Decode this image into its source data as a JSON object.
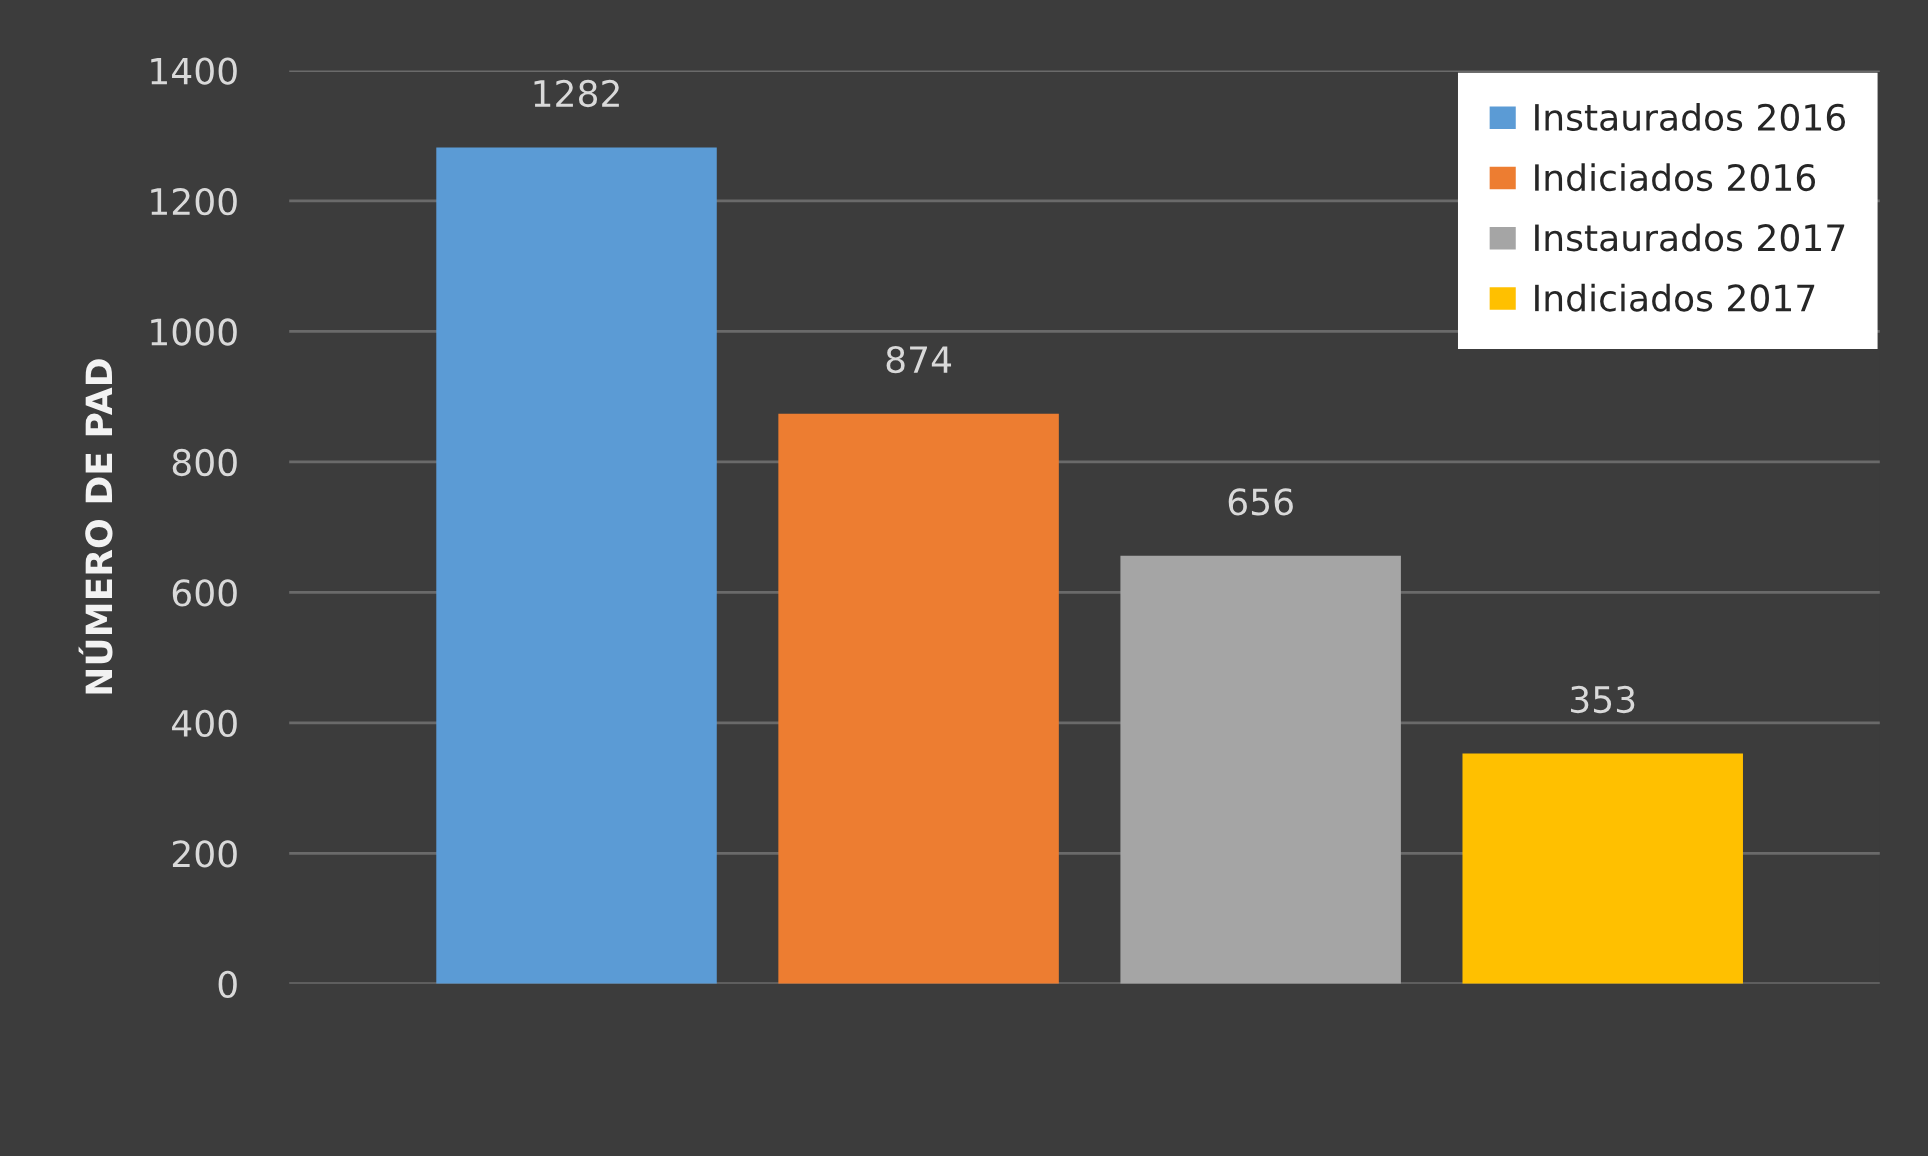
{
  "chart_data": {
    "type": "bar",
    "ylabel": "NÚMERO DE PAD",
    "categories": [
      null,
      null,
      null,
      null
    ],
    "series": [
      {
        "name": "Instaurados 2016",
        "color": "#5b9bd5",
        "values": [
          1282,
          null,
          null,
          null
        ]
      },
      {
        "name": "Indiciados 2016",
        "color": "#ed7d31",
        "values": [
          null,
          874,
          null,
          null
        ]
      },
      {
        "name": "Instaurados 2017",
        "color": "#a5a5a5",
        "values": [
          null,
          null,
          656,
          null
        ]
      },
      {
        "name": "Indiciados 2017",
        "color": "#ffc000",
        "values": [
          null,
          null,
          null,
          353
        ]
      }
    ],
    "ylim": [
      0,
      1400
    ],
    "yticks": [
      0,
      200,
      400,
      600,
      800,
      1000,
      1200,
      1400
    ],
    "grid": "y",
    "legend": "top right",
    "data_labels": true
  }
}
